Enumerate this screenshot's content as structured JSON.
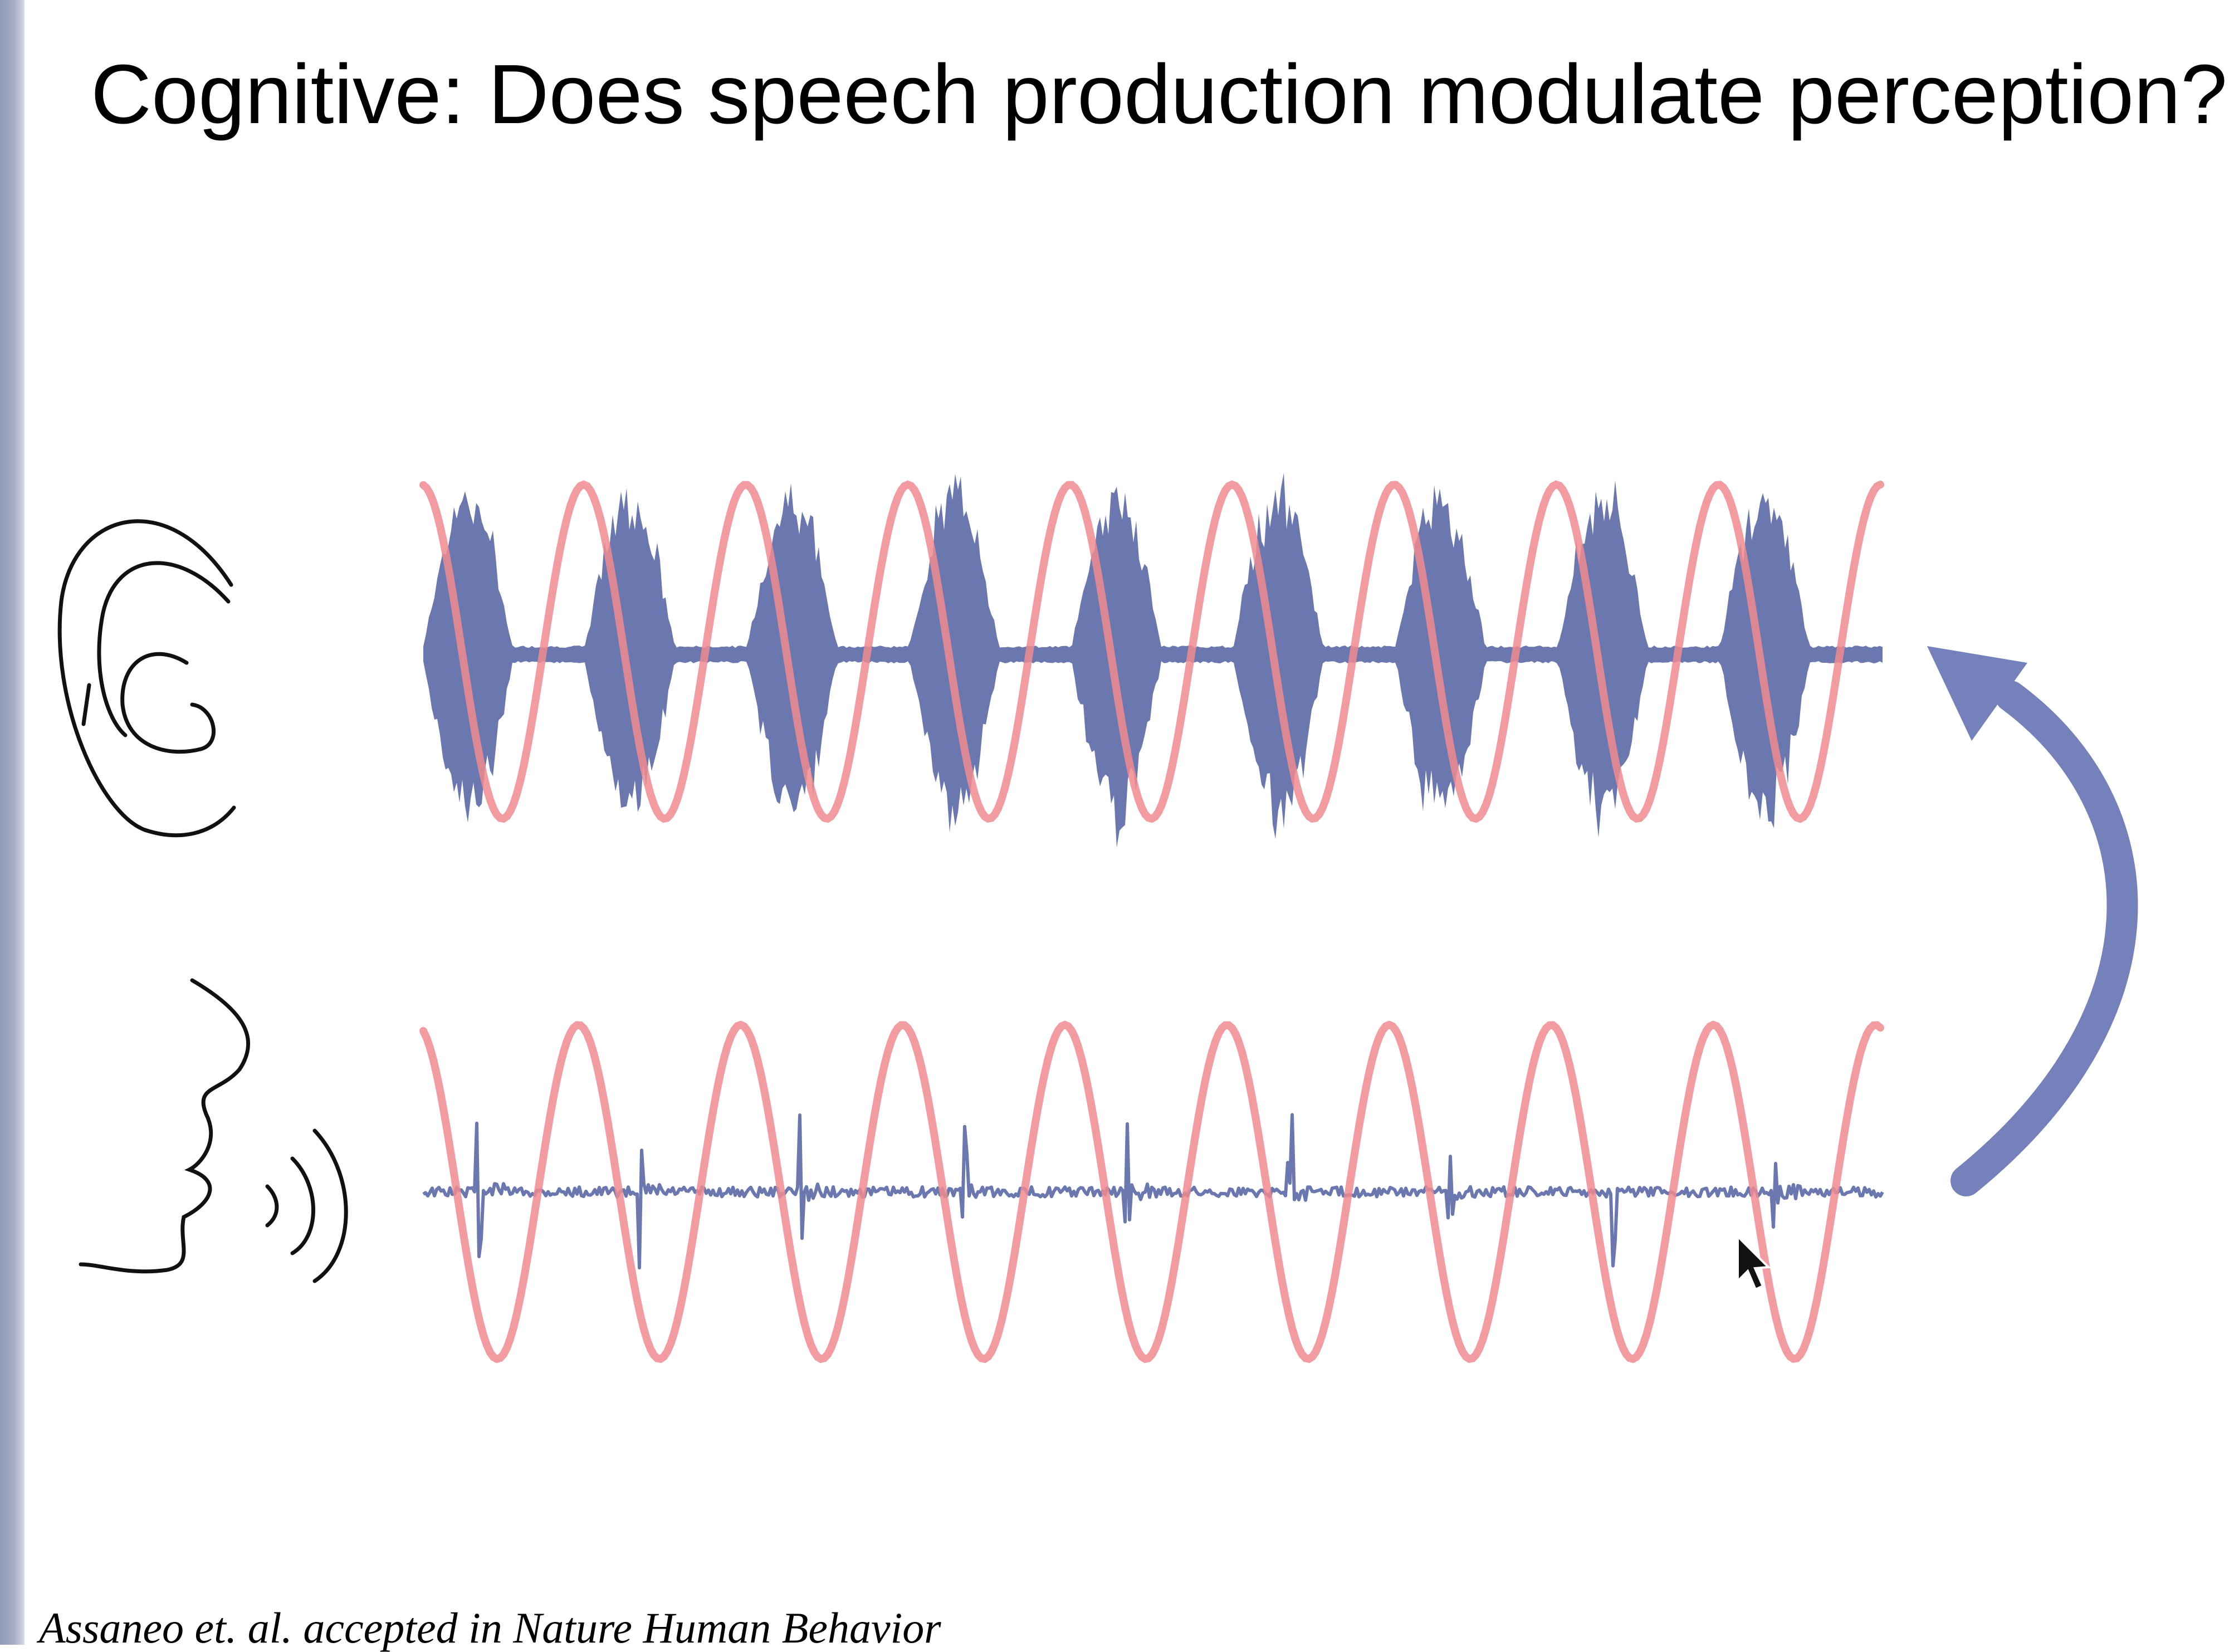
{
  "slide": {
    "title": "Cognitive: Does speech production modulate perception?",
    "citation": "Assaneo et. al. accepted in Nature Human Behavior"
  },
  "icons": {
    "top_row": "ear-icon",
    "bottom_row": "speaking-face-icon",
    "connector": "curved-arrow-up-icon",
    "pointer": "mouse-cursor-icon"
  },
  "colors": {
    "waveform": "#6b78b0",
    "oscillation": "#f08a8f",
    "arrow": "#7481bb",
    "sidebar": "#a3acc4"
  }
}
